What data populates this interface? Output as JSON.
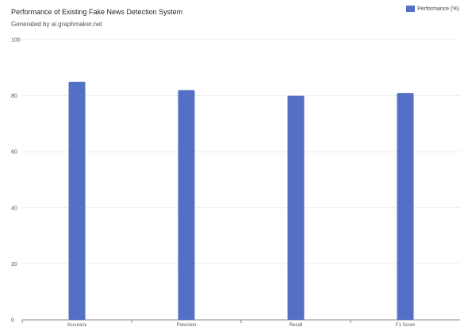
{
  "chart_data": {
    "type": "bar",
    "title": "Performance of Existing Fake News Detection System",
    "subtitle": "Generated by ai.graphmaker.net",
    "categories": [
      "Accuracy",
      "Precision",
      "Recall",
      "F1 Score"
    ],
    "series": [
      {
        "name": "Performance (%)",
        "color": "#5470c6",
        "values": [
          85,
          82,
          80,
          81
        ]
      }
    ],
    "ylim": [
      0,
      100
    ],
    "yticks": [
      0,
      20,
      40,
      60,
      80,
      100
    ],
    "grid": true,
    "legend_position": "top-right",
    "xlabel": "",
    "ylabel": ""
  }
}
